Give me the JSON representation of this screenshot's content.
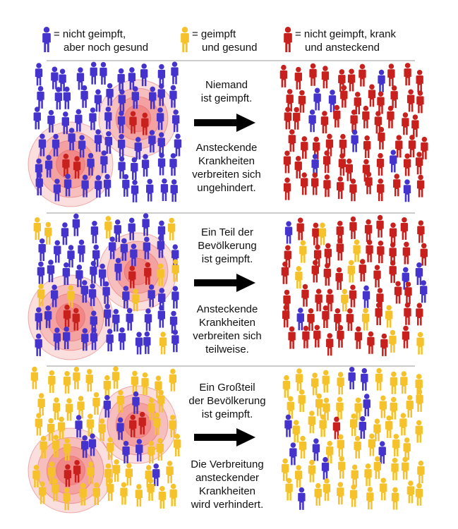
{
  "colors": {
    "unvaccinated_healthy": "#4433cc",
    "vaccinated_healthy": "#f5c22b",
    "sick_contagious": "#c8201c",
    "infection_ring": "#f4a0a0",
    "divider": "#999999",
    "arrow": "#000000"
  },
  "legend": [
    {
      "icon": "person-icon",
      "status": "unvaccinated_healthy",
      "line1": "= nicht geimpft,",
      "line2": "aber noch gesund"
    },
    {
      "icon": "person-icon",
      "status": "vaccinated_healthy",
      "line1": "= geimpft",
      "line2": "und gesund"
    },
    {
      "icon": "person-icon",
      "status": "sick_contagious",
      "line1": "= nicht geimpft, krank",
      "line2": "und ansteckend"
    }
  ],
  "panels": [
    {
      "vaccinated_share": 0.0,
      "caption_top": [
        "Niemand",
        "ist geimpft."
      ],
      "caption_bottom": [
        "Ansteckende",
        "Krankheiten",
        "verbreiten sich",
        "ungehindert."
      ]
    },
    {
      "vaccinated_share": 0.15,
      "caption_top": [
        "Ein Teil der",
        "Bevölkerung",
        "ist geimpft."
      ],
      "caption_bottom": [
        "Ansteckende",
        "Krankheiten",
        "verbreiten sich",
        "teilweise."
      ]
    },
    {
      "vaccinated_share": 0.85,
      "caption_top": [
        "Ein Großteil",
        "der Bevölkerung",
        "ist geimpft."
      ],
      "caption_bottom": [
        "Die Verbreitung",
        "ansteckender",
        "Krankheiten",
        "wird verhindert."
      ]
    }
  ]
}
